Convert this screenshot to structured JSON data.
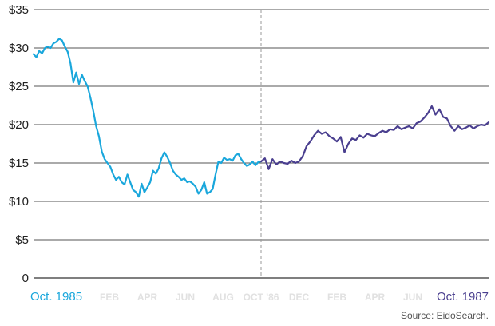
{
  "chart_data": {
    "type": "line",
    "title": "",
    "xlabel": "",
    "ylabel": "",
    "source_label": "Source: EidoSearch.",
    "y_ticks": [
      {
        "value": 0,
        "label": "0"
      },
      {
        "value": 5,
        "label": "$5"
      },
      {
        "value": 10,
        "label": "$10"
      },
      {
        "value": 15,
        "label": "$15"
      },
      {
        "value": 20,
        "label": "$20"
      },
      {
        "value": 25,
        "label": "$25"
      },
      {
        "value": 30,
        "label": "$30"
      },
      {
        "value": 35,
        "label": "$35"
      }
    ],
    "ylim": [
      0,
      35
    ],
    "xlim": [
      0,
      24
    ],
    "x_ticks": [
      {
        "x": 0,
        "label": "Oct. 1985",
        "style": "start"
      },
      {
        "x": 4,
        "label": "FEB",
        "style": "faint"
      },
      {
        "x": 6,
        "label": "APR",
        "style": "faint"
      },
      {
        "x": 8,
        "label": "JUN",
        "style": "faint"
      },
      {
        "x": 10,
        "label": "AUG",
        "style": "faint"
      },
      {
        "x": 12,
        "label": "OCT '86",
        "style": "faint"
      },
      {
        "x": 14,
        "label": "DEC",
        "style": "faint"
      },
      {
        "x": 16,
        "label": "FEB",
        "style": "faint"
      },
      {
        "x": 18,
        "label": "APR",
        "style": "faint"
      },
      {
        "x": 20,
        "label": "JUN",
        "style": "faint"
      },
      {
        "x": 22,
        "label": "Oct. 1987",
        "style": "end"
      }
    ],
    "divider_x": 12,
    "grid": true,
    "colors": {
      "series_1": "#1aa7dc",
      "series_2": "#4a3f8f",
      "grid": "#555555",
      "divider": "#999999",
      "start_label": "#1aa7dc",
      "end_label": "#4a3f8f"
    },
    "series": [
      {
        "x": [
          0,
          0.15,
          0.3,
          0.45,
          0.6,
          0.75,
          0.9,
          1.05,
          1.2,
          1.35,
          1.5,
          1.65,
          1.8,
          1.95,
          2.1,
          2.25,
          2.4,
          2.55,
          2.7,
          2.85,
          3.0,
          3.15,
          3.3,
          3.45,
          3.6,
          3.75,
          3.9,
          4.05,
          4.2,
          4.35,
          4.5,
          4.65,
          4.8,
          4.95,
          5.1,
          5.25,
          5.4,
          5.55,
          5.7,
          5.85,
          6.0,
          6.15,
          6.3,
          6.45,
          6.6,
          6.75,
          6.9,
          7.05,
          7.2,
          7.35,
          7.5,
          7.65,
          7.8,
          7.95,
          8.1,
          8.25,
          8.4,
          8.55,
          8.7,
          8.85,
          9.0,
          9.15,
          9.3,
          9.45,
          9.6,
          9.75,
          9.9,
          10.05,
          10.2,
          10.35,
          10.5,
          10.65,
          10.8,
          10.95,
          11.1,
          11.25,
          11.4,
          11.55,
          11.7,
          11.85,
          12.0
        ],
        "y": [
          29.2,
          28.8,
          29.6,
          29.3,
          30.0,
          30.2,
          30.0,
          30.6,
          30.8,
          31.2,
          31.0,
          30.2,
          29.5,
          28.0,
          25.5,
          26.8,
          25.3,
          26.5,
          25.7,
          25.0,
          23.5,
          21.8,
          19.8,
          18.5,
          16.5,
          15.5,
          15.0,
          14.5,
          13.5,
          12.8,
          13.2,
          12.5,
          12.2,
          13.5,
          12.5,
          11.5,
          11.2,
          10.6,
          12.3,
          11.2,
          11.8,
          12.5,
          14.0,
          13.6,
          14.3,
          15.6,
          16.4,
          15.8,
          15.0,
          14.0,
          13.5,
          13.2,
          12.8,
          13.0,
          12.5,
          12.6,
          12.3,
          11.9,
          11.0,
          11.5,
          12.5,
          11.0,
          11.2,
          11.6,
          13.5,
          15.2,
          15.0,
          15.7,
          15.4,
          15.5,
          15.3,
          16.0,
          16.2,
          15.5,
          15.0,
          14.6,
          14.8,
          15.2,
          14.7,
          15.1,
          15.2
        ]
      },
      {
        "x": [
          12.0,
          12.2,
          12.4,
          12.6,
          12.8,
          13.0,
          13.2,
          13.4,
          13.6,
          13.8,
          14.0,
          14.2,
          14.4,
          14.6,
          14.8,
          15.0,
          15.2,
          15.4,
          15.6,
          15.8,
          16.0,
          16.2,
          16.4,
          16.6,
          16.8,
          17.0,
          17.2,
          17.4,
          17.6,
          17.8,
          18.0,
          18.2,
          18.4,
          18.6,
          18.8,
          19.0,
          19.2,
          19.4,
          19.6,
          19.8,
          20.0,
          20.2,
          20.4,
          20.6,
          20.8,
          21.0,
          21.2,
          21.4,
          21.6,
          21.8,
          22.0,
          22.2,
          22.4,
          22.6,
          22.8,
          23.0,
          23.2,
          23.4,
          23.6,
          23.8,
          24.0
        ],
        "y": [
          15.2,
          15.6,
          14.2,
          15.5,
          14.8,
          15.2,
          15.0,
          14.9,
          15.3,
          15.0,
          15.2,
          15.9,
          17.2,
          17.8,
          18.6,
          19.2,
          18.8,
          19.0,
          18.5,
          18.2,
          17.8,
          18.4,
          16.4,
          17.5,
          18.2,
          18.0,
          18.6,
          18.3,
          18.8,
          18.6,
          18.5,
          18.9,
          19.2,
          19.0,
          19.4,
          19.3,
          19.8,
          19.4,
          19.6,
          19.8,
          19.5,
          20.2,
          20.4,
          20.9,
          21.5,
          22.4,
          21.3,
          22.0,
          21.0,
          20.8,
          19.8,
          19.2,
          19.8,
          19.4,
          19.6,
          19.9,
          19.5,
          19.8,
          20.0,
          19.9,
          20.3
        ]
      }
    ]
  }
}
